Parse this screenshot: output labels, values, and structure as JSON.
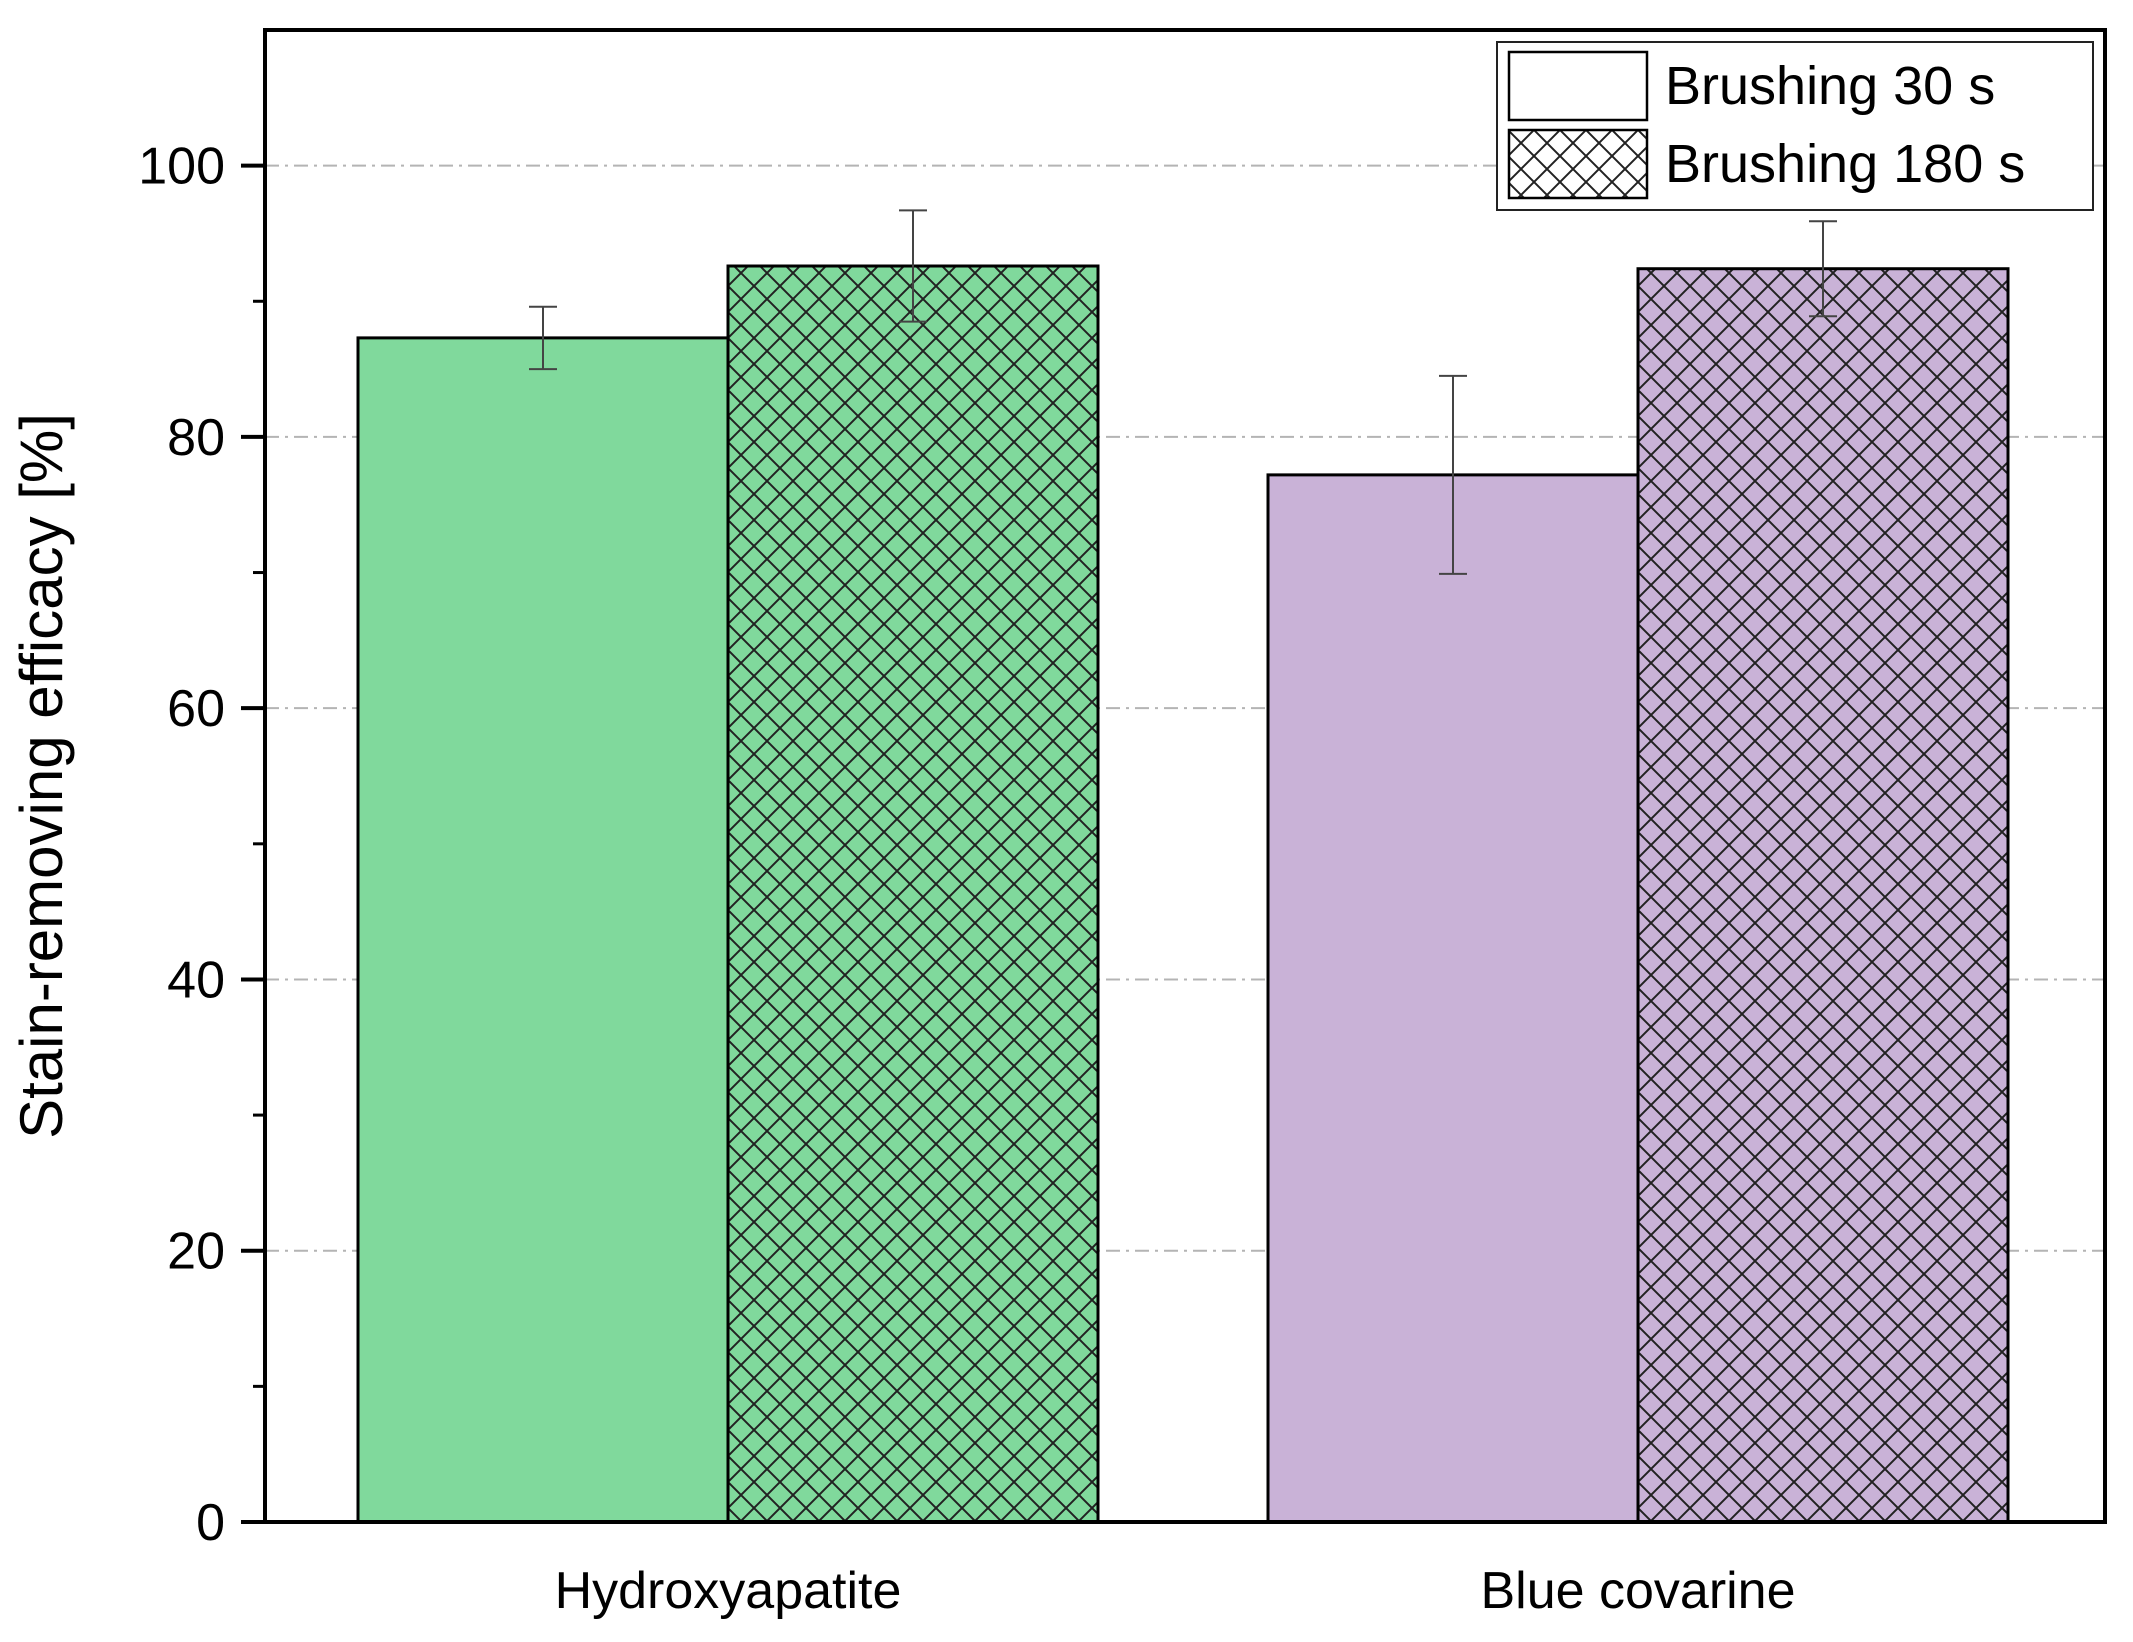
{
  "chart_data": {
    "type": "bar",
    "title": "",
    "xlabel": "",
    "ylabel": "Stain-removing efficacy [%]",
    "ylim": [
      0,
      110
    ],
    "yticks": [
      0,
      20,
      40,
      60,
      80,
      100
    ],
    "y_minor_step": 10,
    "grid": "horizontal dash-dot at major ticks",
    "legend_position": "top-right",
    "categories": [
      "Hydroxyapatite",
      "Blue covarine"
    ],
    "category_colors": [
      "#80D99C",
      "#C9B2D7"
    ],
    "series": [
      {
        "name": "Brushing 30 s",
        "pattern": "solid",
        "values": [
          87.3,
          77.2
        ],
        "errors": [
          2.3,
          7.3
        ]
      },
      {
        "name": "Brushing 180 s",
        "pattern": "crosshatch",
        "values": [
          92.6,
          92.4
        ],
        "errors": [
          4.1,
          3.5
        ]
      }
    ]
  }
}
